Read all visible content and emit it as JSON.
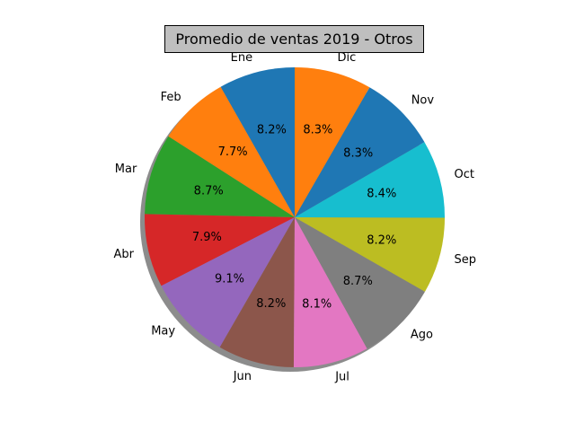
{
  "chart_data": {
    "type": "pie",
    "title": "Promedio de ventas 2019 - Otros",
    "categories": [
      "Ene",
      "Feb",
      "Mar",
      "Abr",
      "May",
      "Jun",
      "Jul",
      "Ago",
      "Sep",
      "Oct",
      "Nov",
      "Dic"
    ],
    "values": [
      8.2,
      7.7,
      8.7,
      7.9,
      9.1,
      8.2,
      8.1,
      8.7,
      8.2,
      8.4,
      8.3,
      8.3
    ],
    "labels_pct": [
      "8.2%",
      "7.7%",
      "8.7%",
      "7.9%",
      "9.1%",
      "8.2%",
      "8.1%",
      "8.7%",
      "8.2%",
      "8.4%",
      "8.3%",
      "8.3%"
    ],
    "start_angle_deg": 90,
    "direction": "counterclockwise",
    "shadow": true,
    "colors": [
      "#1f77b4",
      "#ff7f0e",
      "#2ca02c",
      "#d62728",
      "#9467bd",
      "#8c564b",
      "#e377c2",
      "#7f7f7f",
      "#bcbd22",
      "#17becf",
      "#1f77b4",
      "#ff7f0e"
    ]
  }
}
